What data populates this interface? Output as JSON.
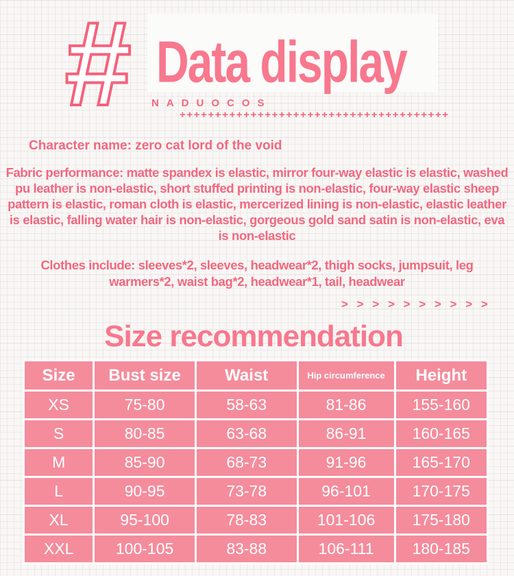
{
  "theme": {
    "accent_pink": "#f4627c",
    "title_pink": "#f8788e",
    "body_pink": "#f2687f",
    "table_pink": "#f48c9c",
    "background": "#f8f7f5"
  },
  "header": {
    "hash_mark": "#",
    "title": "Data display",
    "brand": "NADUOCOS",
    "plus_row": "++++++++++++++++++++++++++++++++++++++"
  },
  "info": {
    "character_name": "Character name: zero cat lord of the void",
    "fabric_performance": "Fabric performance: matte spandex is elastic, mirror four-way elastic is elastic, washed pu leather is non-elastic, short stuffed printing is non-elastic, four-way elastic sheep pattern is elastic, roman cloth is elastic, mercerized lining is non-elastic, elastic leather is elastic, falling water hair is non-elastic, gorgeous gold sand satin is non-elastic, eva is non-elastic",
    "clothes_include": "Clothes include: sleeves*2, sleeves, headwear*2, thigh socks, jumpsuit, leg warmers*2, waist bag*2, headwear*1, tail, headwear",
    "chevron_row": "> > > > > > > > > >"
  },
  "size_section": {
    "title": "Size recommendation",
    "table": {
      "columns": [
        "Size",
        "Bust size",
        "Waist",
        "Hip circumference",
        "Height"
      ],
      "rows": [
        [
          "XS",
          "75-80",
          "58-63",
          "81-86",
          "155-160"
        ],
        [
          "S",
          "80-85",
          "63-68",
          "86-91",
          "160-165"
        ],
        [
          "M",
          "85-90",
          "68-73",
          "91-96",
          "165-170"
        ],
        [
          "L",
          "90-95",
          "73-78",
          "96-101",
          "170-175"
        ],
        [
          "XL",
          "95-100",
          "78-83",
          "101-106",
          "175-180"
        ],
        [
          "XXL",
          "100-105",
          "83-88",
          "106-111",
          "180-185"
        ]
      ]
    }
  }
}
